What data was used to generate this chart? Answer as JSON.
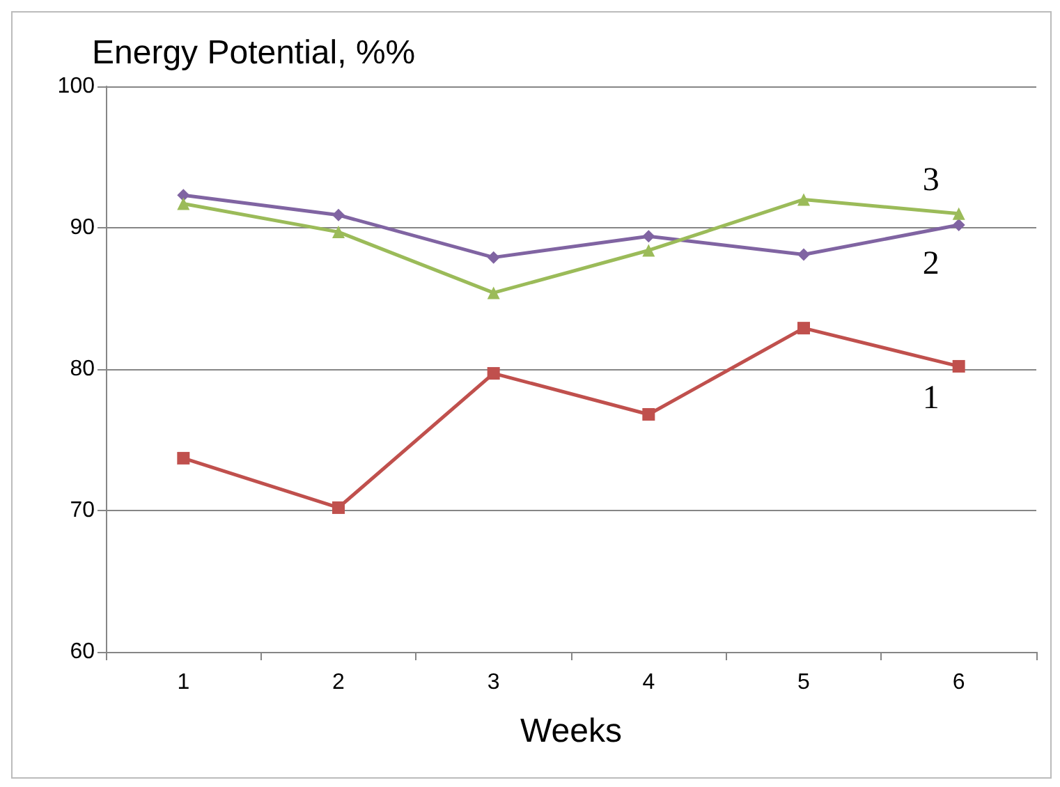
{
  "chart_data": {
    "type": "line",
    "ylabel": "Energy Potential, %%",
    "xlabel": "Weeks",
    "categories": [
      "1",
      "2",
      "3",
      "4",
      "5",
      "6"
    ],
    "series": [
      {
        "name": "1",
        "color": "#c0504d",
        "marker": "square",
        "values": [
          73.7,
          70.2,
          79.7,
          76.8,
          82.9,
          80.2
        ]
      },
      {
        "name": "2",
        "color": "#8064a2",
        "marker": "diamond",
        "values": [
          92.3,
          90.9,
          87.9,
          89.4,
          88.1,
          90.2
        ]
      },
      {
        "name": "3",
        "color": "#9bbb59",
        "marker": "triangle",
        "values": [
          91.7,
          89.7,
          85.4,
          88.4,
          92.0,
          91.0
        ]
      }
    ],
    "ylim": [
      60,
      100
    ],
    "yticks": [
      60,
      70,
      80,
      90,
      100
    ],
    "grid": "y",
    "legend": false,
    "line_style": "solid"
  }
}
